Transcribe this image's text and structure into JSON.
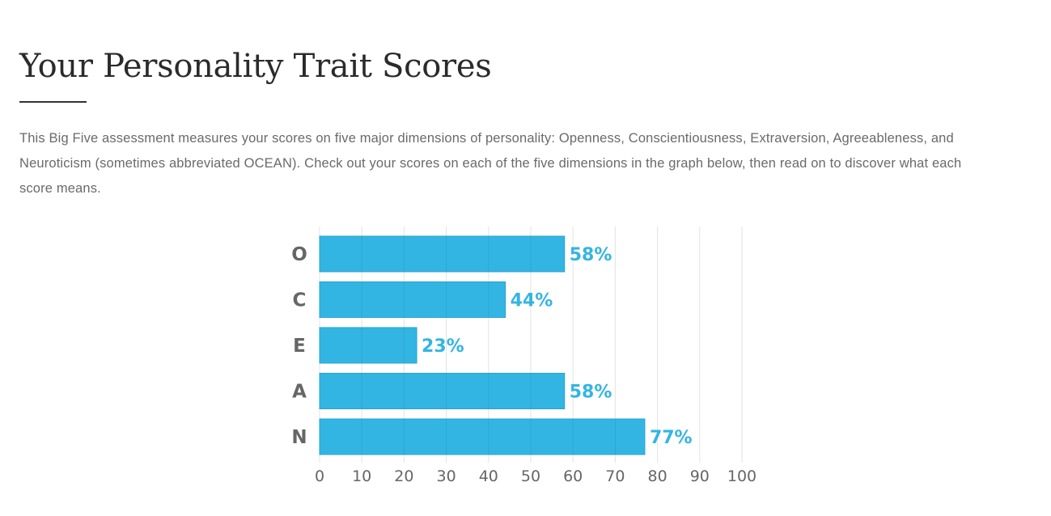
{
  "page": {
    "title": "Your Personality Trait Scores",
    "intro": "This Big Five assessment measures your scores on five major dimensions of personality: Openness, Conscientiousness, Extraversion, Agreeableness, and Neuroticism (sometimes abbreviated OCEAN). Check out your scores on each of the five dimensions in the graph below, then read on to discover what each score means."
  },
  "chart_data": {
    "type": "bar",
    "orientation": "horizontal",
    "categories": [
      "O",
      "C",
      "E",
      "A",
      "N"
    ],
    "values": [
      58,
      44,
      23,
      58,
      77
    ],
    "value_labels": [
      "58%",
      "44%",
      "23%",
      "58%",
      "77%"
    ],
    "xlim": [
      0,
      100
    ],
    "xticks": [
      0,
      10,
      20,
      30,
      40,
      50,
      60,
      70,
      80,
      90,
      100
    ],
    "xtick_labels": [
      "0",
      "10",
      "20",
      "30",
      "40",
      "50",
      "60",
      "70",
      "80",
      "90",
      "100"
    ],
    "grid": true,
    "legend": "none",
    "colors": {
      "bar": "#33b5e3",
      "bar_stroke": "#2aa3cf",
      "value_label": "#33b5e3",
      "category_label": "#666666",
      "tick_label": "#666666",
      "grid": "#e3e3e3",
      "grid_over_bar": "#2a9bc6"
    }
  }
}
